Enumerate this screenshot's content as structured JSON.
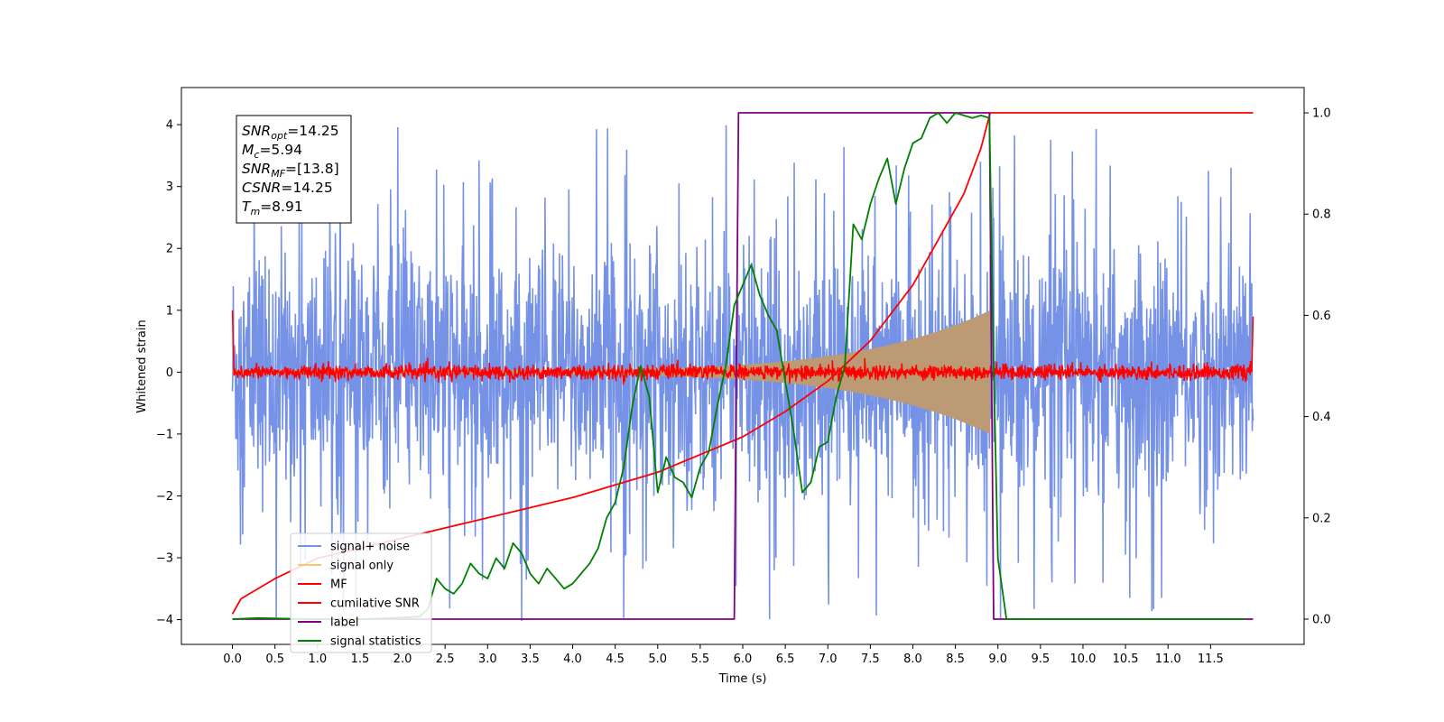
{
  "chart_data": {
    "type": "line",
    "xlabel": "Time (s)",
    "ylabel": "Whitened strain",
    "xlim": [
      -0.6,
      12.6
    ],
    "ylim": [
      -4.4,
      4.6
    ],
    "y2lim": [
      -0.05,
      1.05
    ],
    "xticks": [
      "0.0",
      "0.5",
      "1.0",
      "1.5",
      "2.0",
      "2.5",
      "3.0",
      "3.5",
      "4.0",
      "4.5",
      "5.0",
      "5.5",
      "6.0",
      "6.5",
      "7.0",
      "7.5",
      "8.0",
      "8.5",
      "9.0",
      "9.5",
      "10.0",
      "10.5",
      "11.0",
      "11.5"
    ],
    "yticks": [
      "4",
      "3",
      "2",
      "1",
      "0",
      "−1",
      "−2",
      "−3",
      "−4"
    ],
    "y2ticks": [
      "1.0",
      "0.8",
      "0.6",
      "0.4",
      "0.2",
      "0.0"
    ],
    "grid": false,
    "legend_position": "lower-left",
    "info_box": {
      "lines": [
        {
          "main": "SNR",
          "sub": "opt",
          "rest": "=14.25"
        },
        {
          "main": "M",
          "sub": "c",
          "rest": "=5.94"
        },
        {
          "main": "SNR",
          "sub": "MF",
          "rest": "=[13.8]"
        },
        {
          "main": "CSNR",
          "sub": "",
          "rest": "=14.25"
        },
        {
          "main": "T",
          "sub": "m",
          "rest": "=8.91"
        }
      ]
    },
    "series": [
      {
        "name": "signal+ noise",
        "color": "#7592e6",
        "axis": "left",
        "kind": "noise",
        "t_range": [
          0.0,
          12.0
        ],
        "envelope_abs_max": 4.15,
        "typical_abs_max": 2.2
      },
      {
        "name": "signal only",
        "color": "#f5c76e",
        "axis": "left",
        "kind": "chirp",
        "t_range": [
          0.0,
          8.91
        ],
        "amplitude_start": 0.03,
        "amplitude_peak": 1.0
      },
      {
        "name": "MF",
        "color": "#ff0000",
        "axis": "left",
        "kind": "noise",
        "t_range": [
          0.0,
          12.0
        ],
        "typical_abs_max": 0.12
      },
      {
        "name": "cumilative SNR",
        "color": "#ff0000",
        "axis": "right",
        "x": [
          0.0,
          0.1,
          0.5,
          1.0,
          2.0,
          3.0,
          4.0,
          5.0,
          6.0,
          6.5,
          7.0,
          7.5,
          8.0,
          8.3,
          8.6,
          8.8,
          8.91,
          12.0
        ],
        "y": [
          0.01,
          0.04,
          0.08,
          0.12,
          0.16,
          0.2,
          0.24,
          0.29,
          0.36,
          0.41,
          0.47,
          0.55,
          0.66,
          0.75,
          0.84,
          0.93,
          1.0,
          1.0
        ]
      },
      {
        "name": "label",
        "color": "#800080",
        "axis": "right",
        "x": [
          0.0,
          5.9,
          5.95,
          8.9,
          8.95,
          12.0
        ],
        "y": [
          0.0,
          0.0,
          1.0,
          1.0,
          0.0,
          0.0
        ]
      },
      {
        "name": "signal statistics",
        "color": "#008000",
        "axis": "right",
        "x": [
          0.0,
          0.3,
          0.6,
          1.0,
          1.5,
          2.0,
          2.2,
          2.3,
          2.4,
          2.5,
          2.6,
          2.7,
          2.8,
          2.9,
          3.0,
          3.1,
          3.2,
          3.3,
          3.4,
          3.5,
          3.6,
          3.7,
          3.8,
          3.9,
          4.0,
          4.1,
          4.2,
          4.3,
          4.4,
          4.5,
          4.6,
          4.7,
          4.8,
          4.9,
          5.0,
          5.1,
          5.2,
          5.3,
          5.4,
          5.5,
          5.6,
          5.7,
          5.8,
          5.9,
          6.0,
          6.1,
          6.2,
          6.3,
          6.4,
          6.5,
          6.6,
          6.7,
          6.8,
          6.9,
          7.0,
          7.1,
          7.2,
          7.3,
          7.4,
          7.5,
          7.6,
          7.7,
          7.8,
          7.9,
          8.0,
          8.1,
          8.2,
          8.3,
          8.4,
          8.5,
          8.6,
          8.7,
          8.8,
          8.9,
          8.95,
          9.0,
          9.1,
          9.5,
          10.0,
          11.0,
          11.9
        ],
        "y": [
          0.0,
          0.002,
          0.001,
          0.0,
          0.0,
          0.003,
          0.005,
          0.02,
          0.08,
          0.06,
          0.05,
          0.07,
          0.11,
          0.09,
          0.08,
          0.12,
          0.1,
          0.15,
          0.13,
          0.09,
          0.07,
          0.1,
          0.08,
          0.06,
          0.07,
          0.09,
          0.11,
          0.14,
          0.2,
          0.23,
          0.3,
          0.42,
          0.5,
          0.44,
          0.25,
          0.32,
          0.28,
          0.27,
          0.24,
          0.3,
          0.33,
          0.42,
          0.5,
          0.62,
          0.66,
          0.7,
          0.64,
          0.6,
          0.57,
          0.47,
          0.37,
          0.25,
          0.27,
          0.34,
          0.35,
          0.44,
          0.5,
          0.78,
          0.75,
          0.82,
          0.87,
          0.91,
          0.82,
          0.89,
          0.94,
          0.95,
          0.99,
          1.0,
          0.98,
          1.0,
          0.995,
          0.99,
          0.995,
          0.99,
          0.5,
          0.12,
          0.0,
          0.0,
          0.0,
          0.0,
          0.0
        ]
      }
    ]
  }
}
